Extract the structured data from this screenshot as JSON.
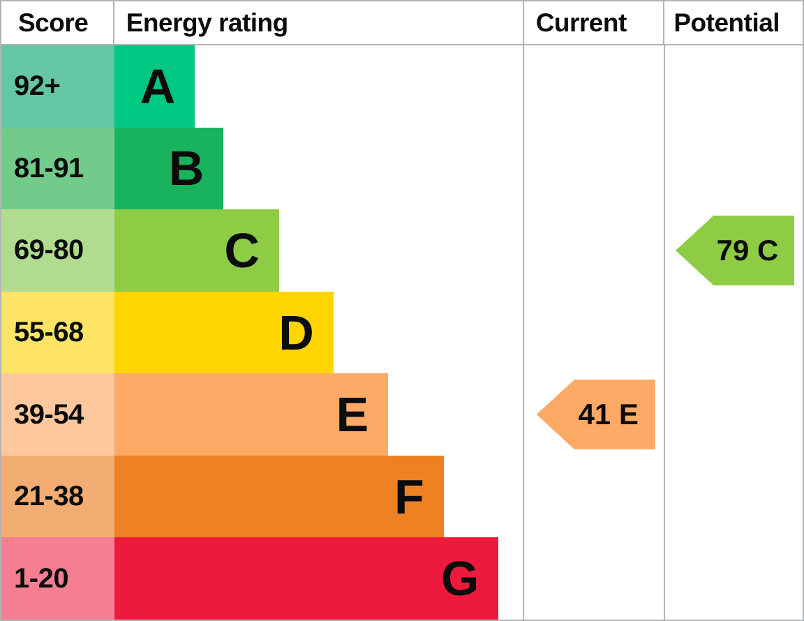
{
  "header": {
    "score": "Score",
    "energy_rating": "Energy rating",
    "current": "Current",
    "potential": "Potential"
  },
  "colors": {
    "border_grey": "#b1b4b6",
    "text_black": "#0b0c0c"
  },
  "chart_data": {
    "type": "bar",
    "orientation": "horizontal",
    "title": "Energy rating chart (EPC style)",
    "columns": [
      "Score",
      "Energy rating",
      "Current",
      "Potential"
    ],
    "bands": [
      {
        "label": "A",
        "score_range": "92+",
        "bar_width_pct": 19.7,
        "bar_color": "#00c781",
        "score_bg": "#63c7a3"
      },
      {
        "label": "B",
        "score_range": "81-91",
        "bar_width_pct": 26.7,
        "bar_color": "#19b25d",
        "score_bg": "#73cb8b"
      },
      {
        "label": "C",
        "score_range": "69-80",
        "bar_width_pct": 40.3,
        "bar_color": "#8dcc44",
        "score_bg": "#b1dc90"
      },
      {
        "label": "D",
        "score_range": "55-68",
        "bar_width_pct": 53.6,
        "bar_color": "#ffd500",
        "score_bg": "#fde466"
      },
      {
        "label": "E",
        "score_range": "39-54",
        "bar_width_pct": 67.0,
        "bar_color": "#fcaa66",
        "score_bg": "#ffc79c"
      },
      {
        "label": "F",
        "score_range": "21-38",
        "bar_width_pct": 80.6,
        "bar_color": "#ef8123",
        "score_bg": "#f3ad72"
      },
      {
        "label": "G",
        "score_range": "1-20",
        "bar_width_pct": 94.0,
        "bar_color": "#ed1a3d",
        "score_bg": "#f67e92"
      }
    ],
    "current": {
      "value": 41,
      "band": "E",
      "label": "41 E",
      "color": "#fcaa66",
      "band_row_index": 4
    },
    "potential": {
      "value": 79,
      "band": "C",
      "label": "79 C",
      "color": "#8dcc44",
      "band_row_index": 2
    }
  }
}
